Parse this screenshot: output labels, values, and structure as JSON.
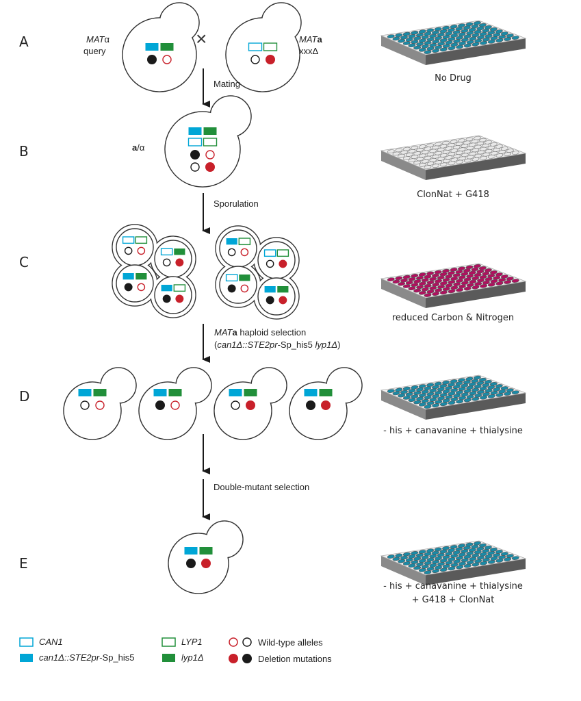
{
  "colors": {
    "can1_blue": "#00a6d6",
    "lyp1_green": "#218f3a",
    "deletion_red": "#c8202a",
    "black": "#1a1a1a",
    "well_teal": "#1b8aa6",
    "well_white": "#e8e8e8",
    "well_magenta": "#b0105f",
    "plate_side": "#5a5a5a"
  },
  "rows": [
    "A",
    "B",
    "C",
    "D",
    "E"
  ],
  "row_a": {
    "left_label_1": "MAT",
    "left_label_1b": "α",
    "left_label_2": "query",
    "cross": "×",
    "right_label_1": "MAT",
    "right_label_1b": "a",
    "right_label_2": "xxxΔ"
  },
  "row_b": {
    "label_a": "a",
    "label_sep": "/α"
  },
  "steps": {
    "mating": "Mating",
    "sporulation": "Sporulation",
    "haploid_1a": "MAT",
    "haploid_1b": "a",
    "haploid_1c": " haploid selection",
    "haploid_2a": "(",
    "haploid_2b": "can1Δ::STE2pr",
    "haploid_2c": "-Sp_his5 ",
    "haploid_2d": "lyp1Δ",
    "haploid_2e": ")",
    "double": "Double-mutant selection"
  },
  "plates": [
    {
      "label": "No Drug",
      "wells": "teal"
    },
    {
      "label": "ClonNat + G418",
      "wells": "white"
    },
    {
      "label": "reduced Carbon & Nitrogen",
      "wells": "magenta"
    },
    {
      "label": "- his + canavanine + thialysine",
      "wells": "teal"
    },
    {
      "label": "- his + canavanine + thialysine",
      "label2": "+ G418 + ClonNat",
      "wells": "teal"
    }
  ],
  "cells": {
    "a_left": {
      "genes": [
        [
          true,
          true
        ]
      ],
      "alleles": [
        [
          "black-filled",
          "red-open"
        ]
      ]
    },
    "a_right": {
      "genes": [
        [
          false,
          false
        ]
      ],
      "alleles": [
        [
          "black-open",
          "red-filled"
        ]
      ]
    },
    "b": {
      "genes": [
        [
          true,
          true
        ],
        [
          false,
          false
        ]
      ],
      "alleles": [
        [
          "black-filled",
          "red-open"
        ],
        [
          "black-open",
          "red-filled"
        ]
      ]
    },
    "tetrad_1": [
      {
        "genes": [
          false,
          false
        ],
        "alleles": [
          "black-open",
          "red-open"
        ]
      },
      {
        "genes": [
          false,
          true
        ],
        "alleles": [
          "black-open",
          "red-filled"
        ]
      },
      {
        "genes": [
          true,
          true
        ],
        "alleles": [
          "black-filled",
          "red-open"
        ]
      },
      {
        "genes": [
          true,
          false
        ],
        "alleles": [
          "black-filled",
          "red-filled"
        ]
      }
    ],
    "tetrad_2": [
      {
        "genes": [
          true,
          false
        ],
        "alleles": [
          "black-open",
          "red-open"
        ]
      },
      {
        "genes": [
          false,
          false
        ],
        "alleles": [
          "black-open",
          "red-filled"
        ]
      },
      {
        "genes": [
          false,
          true
        ],
        "alleles": [
          "black-filled",
          "red-open"
        ]
      },
      {
        "genes": [
          true,
          true
        ],
        "alleles": [
          "black-filled",
          "red-filled"
        ]
      }
    ],
    "d": [
      {
        "genes": [
          true,
          true
        ],
        "alleles": [
          "black-open",
          "red-open"
        ]
      },
      {
        "genes": [
          true,
          true
        ],
        "alleles": [
          "black-filled",
          "red-open"
        ]
      },
      {
        "genes": [
          true,
          true
        ],
        "alleles": [
          "black-open",
          "red-filled"
        ]
      },
      {
        "genes": [
          true,
          true
        ],
        "alleles": [
          "black-filled",
          "red-filled"
        ]
      }
    ],
    "e": {
      "genes": [
        true,
        true
      ],
      "alleles": [
        "black-filled",
        "red-filled"
      ]
    }
  },
  "legend": {
    "can1": "CAN1",
    "can1_del_a": "can1Δ::STE2pr",
    "can1_del_b": "-Sp_his5",
    "lyp1": "LYP1",
    "lyp1_del": "lyp1Δ",
    "wild_type": "Wild-type alleles",
    "deletion": "Deletion mutations"
  }
}
